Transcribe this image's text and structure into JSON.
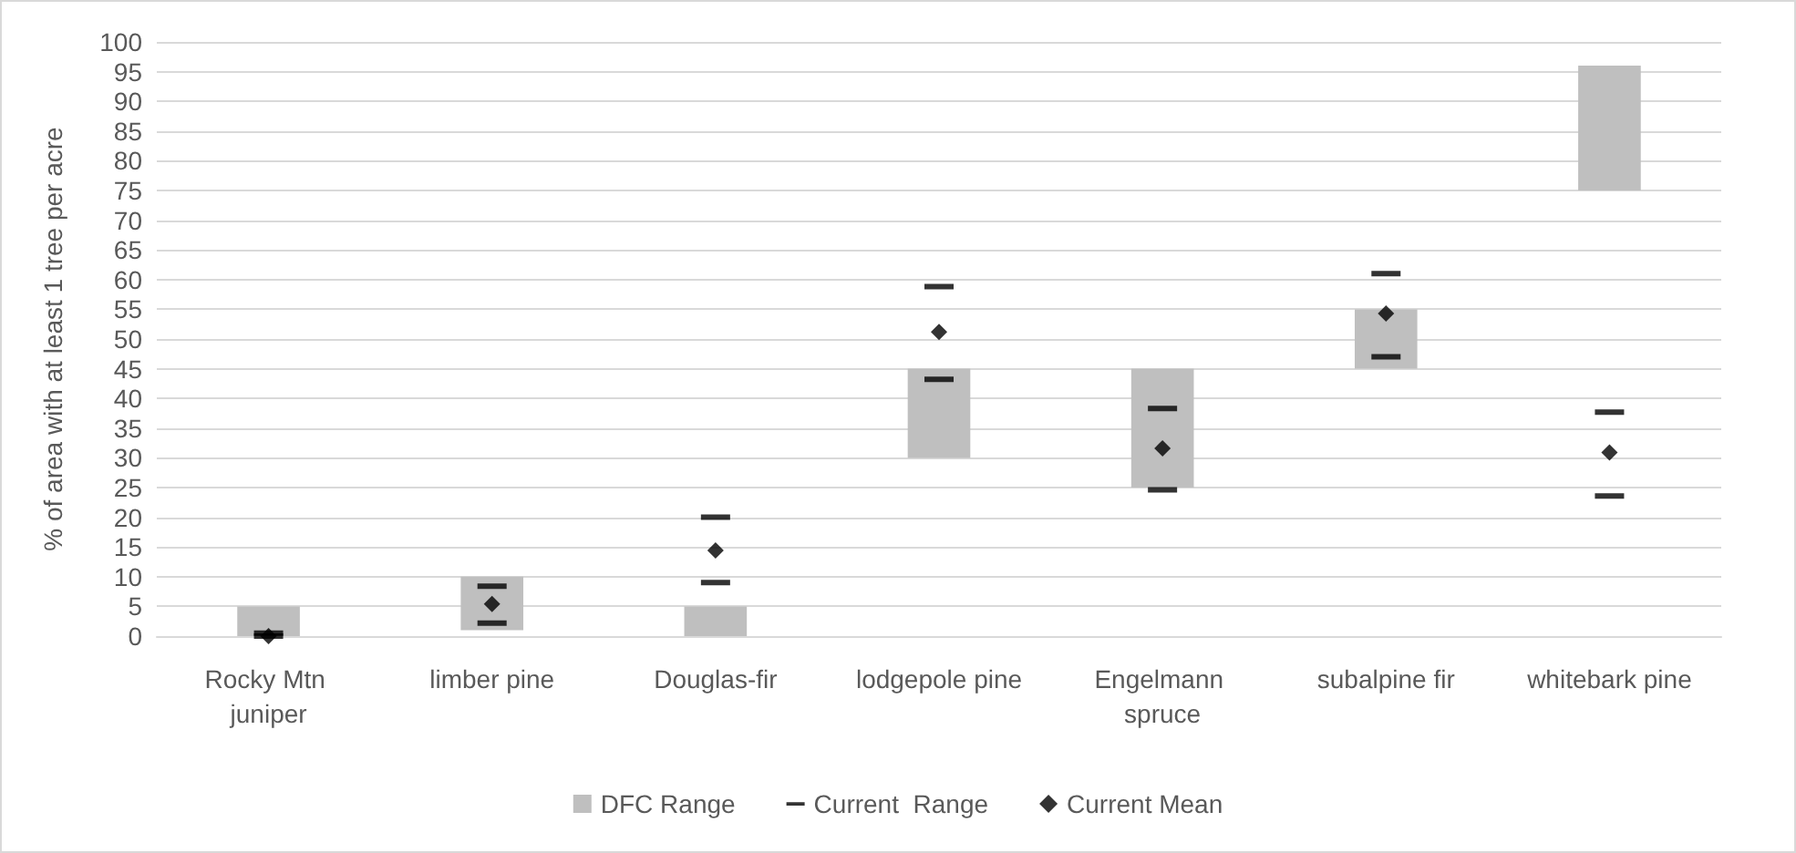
{
  "chart_data": {
    "type": "bar",
    "ylabel": "% of area with at least 1 tree per acre",
    "categories": [
      "Rocky Mtn juniper",
      "limber pine",
      "Douglas-fir",
      "lodgepole pine",
      "Engelmann spruce",
      "subalpine fir",
      "whitebark pine"
    ],
    "series": [
      {
        "name": "DFC Range",
        "color": "#bfbfbf",
        "base": [
          0,
          1,
          0,
          30,
          25,
          45,
          75
        ],
        "values": [
          5,
          9,
          5,
          15,
          20,
          10,
          21
        ]
      },
      {
        "name": "Current  Range",
        "type": "scatter",
        "color": "#000000",
        "x": [
          "Rocky Mtn juniper",
          "Rocky Mtn juniper",
          "limber pine",
          "limber pine",
          "Douglas-fir",
          "Douglas-fir",
          "lodgepole pine",
          "lodgepole pine",
          "Engelmann spruce",
          "Engelmann spruce",
          "subalpine fir",
          "subalpine fir",
          "whitebark pine",
          "whitebark pine"
        ],
        "values": [
          0,
          0.5,
          2.2,
          8.4,
          9,
          20,
          43.2,
          58.8,
          24.6,
          38.3,
          47,
          61,
          23.6,
          37.7
        ]
      },
      {
        "name": "Current Mean",
        "type": "scatter",
        "marker": "diamond",
        "color": "#000000",
        "x": [
          "Rocky Mtn juniper",
          "limber pine",
          "Douglas-fir",
          "lodgepole pine",
          "Engelmann spruce",
          "subalpine fir",
          "whitebark pine"
        ],
        "values": [
          0,
          5.4,
          14.4,
          51.2,
          31.6,
          54.3,
          30.9
        ]
      }
    ],
    "ylim": [
      0,
      100
    ],
    "yticks": [
      0,
      5,
      10,
      15,
      20,
      25,
      30,
      35,
      40,
      45,
      50,
      55,
      60,
      65,
      70,
      75,
      80,
      85,
      90,
      95,
      100
    ],
    "grid": "y",
    "legend": "bottom"
  }
}
